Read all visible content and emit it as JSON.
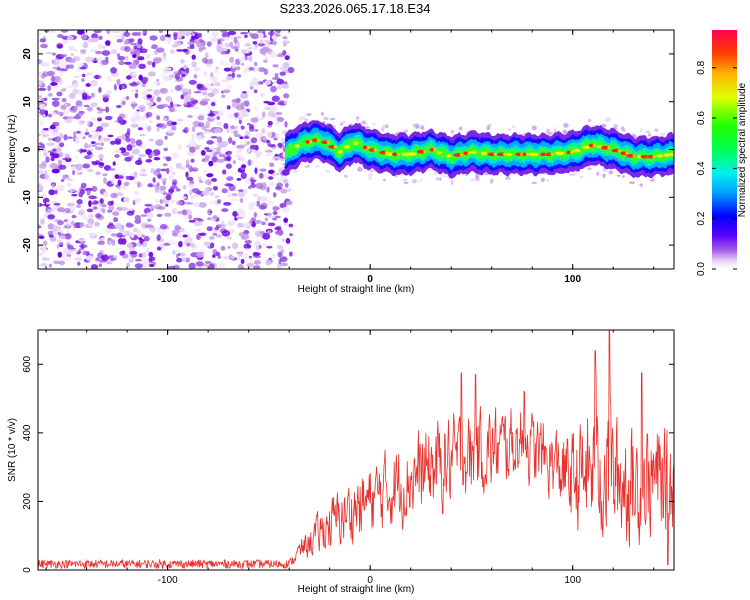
{
  "title": "S233.2026.065.17.18.E34",
  "chart_data": [
    {
      "type": "heatmap",
      "name": "spectrogram",
      "xlabel": "Height of straight line (km)",
      "ylabel": "Frequency (Hz)",
      "xlim": [
        -164,
        150
      ],
      "ylim": [
        -25,
        25
      ],
      "xticks": [
        -100,
        0,
        100
      ],
      "yticks": [
        -20,
        -10,
        0,
        10,
        20
      ],
      "noise_region_x": [
        -164,
        -42
      ],
      "signal_region_x": [
        -42,
        150
      ],
      "signal_track": [
        {
          "x": -42,
          "f": -1
        },
        {
          "x": -35,
          "f": 1
        },
        {
          "x": -28,
          "f": 2
        },
        {
          "x": -22,
          "f": 1.5
        },
        {
          "x": -15,
          "f": -0.5
        },
        {
          "x": -8,
          "f": 1.5
        },
        {
          "x": 0,
          "f": 0
        },
        {
          "x": 10,
          "f": -1
        },
        {
          "x": 20,
          "f": -1
        },
        {
          "x": 30,
          "f": 0
        },
        {
          "x": 40,
          "f": -1.5
        },
        {
          "x": 50,
          "f": -0.5
        },
        {
          "x": 60,
          "f": -1
        },
        {
          "x": 70,
          "f": -1
        },
        {
          "x": 80,
          "f": -1
        },
        {
          "x": 90,
          "f": -1
        },
        {
          "x": 100,
          "f": -0.5
        },
        {
          "x": 110,
          "f": 1
        },
        {
          "x": 120,
          "f": 0
        },
        {
          "x": 130,
          "f": -1.5
        },
        {
          "x": 140,
          "f": -1.5
        },
        {
          "x": 150,
          "f": -1
        }
      ],
      "colorbar": {
        "label": "Normalized spectral amplitude",
        "range": [
          0,
          0.95
        ],
        "ticks": [
          0.0,
          0.2,
          0.4,
          0.6,
          0.8
        ],
        "tick_labels": [
          "0.0",
          "0.2",
          "0.4",
          "0.6",
          "0.8"
        ]
      }
    },
    {
      "type": "line",
      "name": "snr",
      "xlabel": "Height of straight line (km)",
      "ylabel": "SNR (10 * v/v)",
      "xlim": [
        -164,
        150
      ],
      "ylim": [
        0,
        700
      ],
      "xticks": [
        -100,
        0,
        100
      ],
      "yticks": [
        0,
        200,
        400,
        600
      ],
      "series": [
        {
          "name": "SNR",
          "color": "#e8322e",
          "envelope": [
            {
              "x": -164,
              "lo": 5,
              "hi": 30
            },
            {
              "x": -40,
              "lo": 5,
              "hi": 30
            },
            {
              "x": -35,
              "lo": 20,
              "hi": 90
            },
            {
              "x": -20,
              "lo": 40,
              "hi": 230
            },
            {
              "x": 0,
              "lo": 80,
              "hi": 330
            },
            {
              "x": 20,
              "lo": 120,
              "hi": 420
            },
            {
              "x": 40,
              "lo": 160,
              "hi": 480
            },
            {
              "x": 60,
              "lo": 200,
              "hi": 500
            },
            {
              "x": 75,
              "lo": 250,
              "hi": 500
            },
            {
              "x": 90,
              "lo": 180,
              "hi": 440
            },
            {
              "x": 100,
              "lo": 100,
              "hi": 430
            },
            {
              "x": 110,
              "lo": 60,
              "hi": 520
            },
            {
              "x": 120,
              "lo": 40,
              "hi": 500
            },
            {
              "x": 130,
              "lo": 30,
              "hi": 460
            },
            {
              "x": 140,
              "lo": 60,
              "hi": 470
            },
            {
              "x": 150,
              "lo": 80,
              "hi": 430
            }
          ],
          "peaks": [
            {
              "x": 118,
              "y": 700
            },
            {
              "x": 111,
              "y": 640
            },
            {
              "x": 134,
              "y": 575
            },
            {
              "x": 45,
              "y": 575
            },
            {
              "x": 52,
              "y": 570
            },
            {
              "x": 76,
              "y": 520
            }
          ]
        }
      ]
    }
  ]
}
